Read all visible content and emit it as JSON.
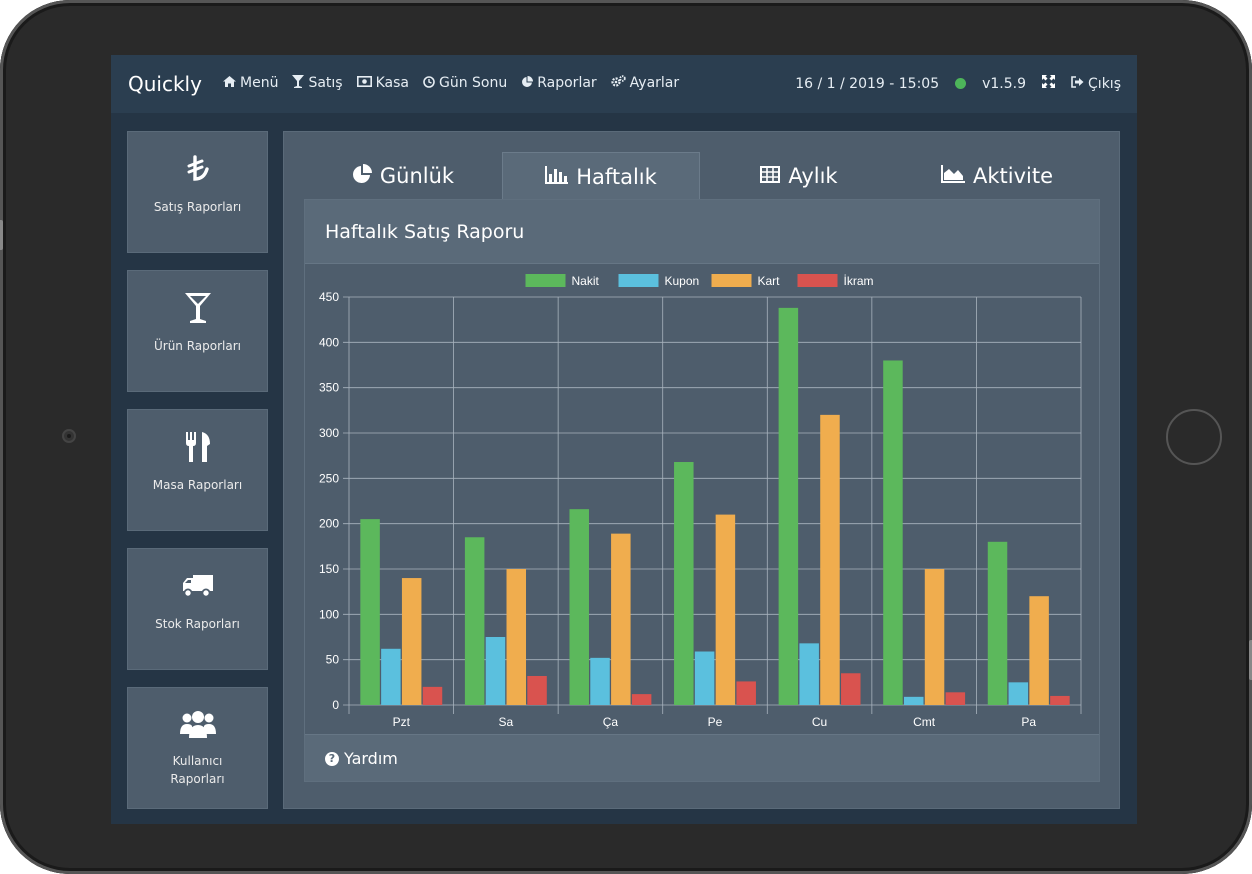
{
  "navbar": {
    "brand": "Quickly",
    "items": [
      {
        "label": "Menü",
        "icon": "home-icon"
      },
      {
        "label": "Satış",
        "icon": "glass-icon"
      },
      {
        "label": "Kasa",
        "icon": "money-icon"
      },
      {
        "label": "Gün Sonu",
        "icon": "clock-icon"
      },
      {
        "label": "Raporlar",
        "icon": "pie-chart-icon"
      },
      {
        "label": "Ayarlar",
        "icon": "gears-icon"
      }
    ],
    "datetime": "16 / 1 / 2019 - 15:05",
    "status_color": "#4db55a",
    "version": "v1.5.9",
    "logout_label": "Çıkış"
  },
  "sidebar": {
    "items": [
      {
        "label_lines": [
          "Satış Raporları"
        ],
        "icon": "lira-icon"
      },
      {
        "label_lines": [
          "Ürün Raporları"
        ],
        "icon": "cocktail-glass-icon"
      },
      {
        "label_lines": [
          "Masa Raporları"
        ],
        "icon": "cutlery-icon"
      },
      {
        "label_lines": [
          "Stok Raporları"
        ],
        "icon": "truck-icon"
      },
      {
        "label_lines": [
          "Kullanıcı",
          "Raporları"
        ],
        "icon": "users-icon"
      }
    ]
  },
  "tabs": [
    {
      "label": "Günlük",
      "icon": "pie-chart-icon",
      "active": false
    },
    {
      "label": "Haftalık",
      "icon": "bar-chart-icon",
      "active": true
    },
    {
      "label": "Aylık",
      "icon": "table-icon",
      "active": false
    },
    {
      "label": "Aktivite",
      "icon": "area-chart-icon",
      "active": false
    }
  ],
  "report": {
    "title": "Haftalık Satış Raporu",
    "help_label": "Yardım"
  },
  "chart_data": {
    "type": "bar",
    "title": "",
    "xlabel": "",
    "ylabel": "",
    "categories": [
      "Pzt",
      "Sa",
      "Ça",
      "Pe",
      "Cu",
      "Cmt",
      "Pa"
    ],
    "series": [
      {
        "name": "Nakit",
        "color": "#5cb85c",
        "values": [
          205,
          185,
          216,
          268,
          438,
          380,
          180
        ]
      },
      {
        "name": "Kupon",
        "color": "#5bc0de",
        "values": [
          62,
          75,
          52,
          59,
          68,
          9,
          25
        ]
      },
      {
        "name": "Kart",
        "color": "#f0ad4e",
        "values": [
          140,
          150,
          189,
          210,
          320,
          150,
          120
        ]
      },
      {
        "name": "İkram",
        "color": "#d9534f",
        "values": [
          20,
          32,
          12,
          26,
          35,
          14,
          10
        ]
      }
    ],
    "ylim": [
      0,
      450
    ],
    "yticks": [
      0,
      50,
      100,
      150,
      200,
      250,
      300,
      350,
      400,
      450
    ],
    "legend_position": "top-center",
    "grid": true
  }
}
